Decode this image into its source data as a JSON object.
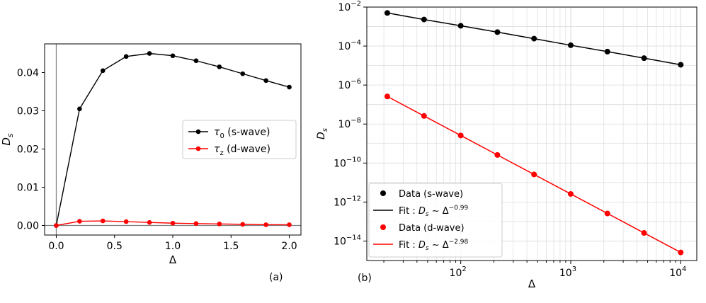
{
  "chart_data": [
    {
      "type": "line",
      "panel_label": "(a)",
      "xlabel": "Δ",
      "ylabel_main": "D",
      "ylabel_sub": "s",
      "xlim": [
        -0.1,
        2.1
      ],
      "ylim": [
        -0.0025,
        0.0475
      ],
      "xticks": [
        0.0,
        0.5,
        1.0,
        1.5,
        2.0
      ],
      "xtick_labels": [
        "0.0",
        "0.5",
        "1.0",
        "1.5",
        "2.0"
      ],
      "yticks": [
        0.0,
        0.01,
        0.02,
        0.03,
        0.04
      ],
      "ytick_labels": [
        "0.00",
        "0.01",
        "0.02",
        "0.03",
        "0.04"
      ],
      "legend_position": "center-right",
      "x": [
        0.0,
        0.2,
        0.4,
        0.6,
        0.8,
        1.0,
        1.2,
        1.4,
        1.6,
        1.8,
        2.0
      ],
      "series": [
        {
          "legend_main": "τ",
          "legend_sub": "0",
          "legend_rest": " (s-wave)",
          "color": "#000000",
          "values": [
            0.0,
            0.0305,
            0.0405,
            0.0442,
            0.045,
            0.0444,
            0.0431,
            0.0415,
            0.0397,
            0.0379,
            0.0362
          ]
        },
        {
          "legend_main": "τ",
          "legend_sub": "z",
          "legend_rest": " (d-wave)",
          "color": "#ff0000",
          "values": [
            0.0,
            0.0011,
            0.0012,
            0.001,
            0.0008,
            0.0006,
            0.0005,
            0.0004,
            0.0003,
            0.0002,
            0.0002
          ]
        }
      ]
    },
    {
      "type": "scatter",
      "panel_label": "(b)",
      "xlabel": "Δ",
      "ylabel_main": "D",
      "ylabel_sub": "s",
      "xscale": "log",
      "yscale": "log",
      "xlim": [
        14,
        14000
      ],
      "ylim": [
        1e-15,
        0.01
      ],
      "grid": true,
      "xticks": [
        100,
        1000,
        10000
      ],
      "xtick_base": "10",
      "xtick_exps": [
        "2",
        "3",
        "4"
      ],
      "yticks": [
        1e-14,
        1e-12,
        1e-10,
        1e-08,
        1e-06,
        0.0001,
        0.01
      ],
      "ytick_base": "10",
      "ytick_exps": [
        "−14",
        "−12",
        "−10",
        "−8",
        "−6",
        "−4",
        "−2"
      ],
      "legend_position": "lower-left",
      "x": [
        21.5,
        46.4,
        100,
        215.4,
        464.2,
        1000,
        2154,
        4642,
        10000
      ],
      "series": [
        {
          "legend": "Data (s-wave)",
          "fit_main": "Fit : D",
          "fit_sub": "s",
          "fit_mid": " ~ Δ",
          "fit_exp": "−0.99",
          "color": "#000000",
          "values": [
            0.005,
            0.0023,
            0.0011,
            0.00052,
            0.00024,
            0.00011,
            5.2e-05,
            2.4e-05,
            1.1e-05
          ]
        },
        {
          "legend": "Data (d-wave)",
          "fit_main": "Fit : D",
          "fit_sub": "s",
          "fit_mid": " ~ Δ",
          "fit_exp": "−2.98",
          "color": "#ff0000",
          "values": [
            2.6e-07,
            2.6e-08,
            2.6e-09,
            2.6e-10,
            2.6e-11,
            2.6e-12,
            2.6e-13,
            2.6e-14,
            2.6e-15
          ]
        }
      ]
    }
  ]
}
